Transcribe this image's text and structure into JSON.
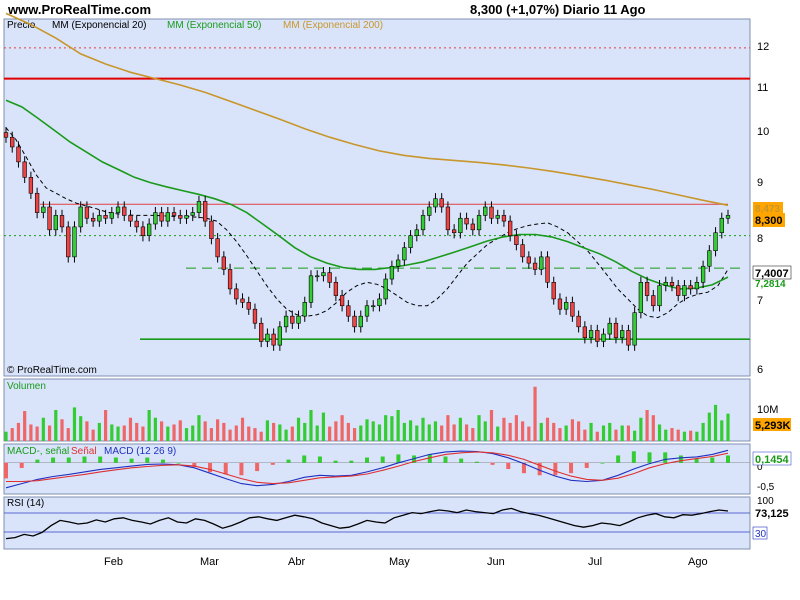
{
  "header": {
    "site": "www.ProRealTime.com",
    "quote": "8,300 (+1,07%)   Diario  11 Ago"
  },
  "price_panel": {
    "legend": [
      {
        "label": "Precio",
        "color": "#000000"
      },
      {
        "label": "MM (Exponencial 20)",
        "color": "#000000"
      },
      {
        "label": "MM (Exponencial 50)",
        "color": "#1a9a1a"
      },
      {
        "label": "MM (Exponencial 200)",
        "color": "#c8962a"
      }
    ],
    "watermark": "© ProRealTime.com",
    "y_ticks": [
      "12",
      "11",
      "10",
      "9",
      "8",
      "7",
      "6"
    ],
    "badges": [
      {
        "text": "8,300",
        "bg": "#ffa500",
        "fg": "#000000"
      },
      {
        "text": "8,473",
        "bg": "#ffa500",
        "fg": "#c8962a"
      },
      {
        "text": "7,4007",
        "bg": "#ffffff",
        "fg": "#000000"
      },
      {
        "text": "7,2814",
        "bg": "#ffffff",
        "fg": "#1a9a1a"
      }
    ]
  },
  "volume_panel": {
    "title": "Volumen",
    "title_color": "#1a9a1a",
    "y_ticks": [
      "10M"
    ],
    "badge": "5,293K"
  },
  "macd_panel": {
    "title_parts": [
      {
        "text": "MACD-, señal",
        "color": "#1a9a1a"
      },
      {
        "text": " Señal",
        "color": "#e03030"
      },
      {
        "text": " MACD (12 26 9)",
        "color": "#2030c0"
      }
    ],
    "y_ticks": [
      "0",
      "-0,5"
    ],
    "badge": "0,1454"
  },
  "rsi_panel": {
    "title": "RSI (14)",
    "y_ticks": [
      "100",
      "30"
    ],
    "badge": "73,125",
    "low_badge": "30"
  },
  "x_axis": {
    "labels": [
      "Feb",
      "Mar",
      "Abr",
      "May",
      "Jun",
      "Jul",
      "Ago"
    ]
  },
  "chart_data": {
    "type": "candlestick",
    "y_scale": "log",
    "ylim": [
      5.9,
      12.6
    ],
    "horizontal_lines": [
      {
        "price": 11.85,
        "color": "#e04040",
        "style": "dotted"
      },
      {
        "price": 11.1,
        "color": "#e00000",
        "style": "solid"
      },
      {
        "price": 8.5,
        "color": "#e04040",
        "style": "solid"
      },
      {
        "price": 7.95,
        "color": "#1a9a1a",
        "style": "dotted"
      },
      {
        "price": 7.42,
        "color": "#1a9a1a",
        "style": "dashed"
      },
      {
        "price": 6.38,
        "color": "#1a9a1a",
        "style": "solid"
      }
    ],
    "closes": [
      9.8,
      9.6,
      9.3,
      9.0,
      8.7,
      8.35,
      8.45,
      8.05,
      8.3,
      8.1,
      7.6,
      8.1,
      8.45,
      8.25,
      8.2,
      8.3,
      8.25,
      8.35,
      8.45,
      8.3,
      8.2,
      8.1,
      7.95,
      8.15,
      8.35,
      8.2,
      8.35,
      8.3,
      8.25,
      8.3,
      8.35,
      8.55,
      8.2,
      7.9,
      7.6,
      7.4,
      7.1,
      6.95,
      6.9,
      6.8,
      6.6,
      6.35,
      6.45,
      6.3,
      6.55,
      6.7,
      6.6,
      6.7,
      6.9,
      7.3,
      7.3,
      7.35,
      7.2,
      7.0,
      6.85,
      6.7,
      6.55,
      6.7,
      6.85,
      6.85,
      6.95,
      7.25,
      7.45,
      7.55,
      7.75,
      7.95,
      8.05,
      8.3,
      8.45,
      8.6,
      8.45,
      8.05,
      8.0,
      8.25,
      8.15,
      8.05,
      8.3,
      8.45,
      8.25,
      8.3,
      8.2,
      7.95,
      7.8,
      7.6,
      7.5,
      7.4,
      7.6,
      7.2,
      6.95,
      6.8,
      6.9,
      6.7,
      6.55,
      6.4,
      6.5,
      6.35,
      6.45,
      6.6,
      6.4,
      6.5,
      6.3,
      6.75,
      7.2,
      7.0,
      6.85,
      7.15,
      7.2,
      7.15,
      7.0,
      7.15,
      7.1,
      7.2,
      7.45,
      7.7,
      8.0,
      8.25,
      8.3
    ],
    "volume": [
      1.8,
      2.5,
      3.5,
      5.8,
      3.2,
      2.8,
      4.5,
      3.0,
      6.0,
      4.2,
      2.5,
      6.5,
      4.8,
      3.8,
      2.2,
      3.5,
      6.0,
      3.2,
      2.8,
      3.0,
      4.5,
      3.5,
      2.8,
      6.0,
      4.5,
      3.8,
      2.8,
      3.2,
      4.0,
      2.5,
      3.0,
      5.0,
      3.8,
      2.5,
      4.2,
      3.5,
      2.2,
      3.0,
      4.5,
      2.8,
      2.5,
      1.8,
      4.0,
      3.5,
      3.2,
      2.2,
      2.8,
      4.5,
      3.5,
      6.0,
      3.0,
      5.5,
      2.8,
      3.8,
      5.0,
      3.5,
      2.5,
      3.0,
      4.2,
      3.8,
      3.2,
      5.0,
      4.8,
      6.0,
      3.5,
      4.0,
      3.0,
      4.5,
      3.2,
      3.8,
      3.0,
      5.0,
      3.2,
      4.5,
      3.2,
      2.5,
      5.0,
      3.8,
      6.0,
      2.8,
      4.5,
      3.5,
      5.0,
      3.8,
      2.8,
      10.5,
      3.5,
      4.5,
      3.5,
      2.5,
      3.0,
      4.2,
      3.8,
      2.2,
      3.5,
      1.8,
      3.0,
      3.5,
      2.2,
      3.0,
      3.0,
      2.0,
      4.5,
      6.0,
      5.0,
      3.2,
      2.2,
      2.5,
      2.2,
      1.8,
      2.0,
      1.8,
      3.5,
      5.5,
      7.0,
      4.0,
      5.3
    ],
    "series": [
      {
        "name": "MM (Exponencial 20)",
        "color": "#000000",
        "style": "dashed",
        "from_index": 0,
        "values": [
          10.0,
          9.75,
          9.4,
          9.05,
          8.8,
          8.7,
          8.6,
          8.52,
          8.47,
          8.42,
          8.36,
          8.33,
          8.31,
          8.3,
          8.3,
          8.3,
          8.29,
          8.28,
          8.28,
          8.27,
          8.25,
          8.2,
          8.05,
          7.85,
          7.62,
          7.38,
          7.15,
          6.95,
          6.8,
          6.72,
          6.7,
          6.72,
          6.78,
          6.9,
          7.05,
          7.15,
          7.2,
          7.17,
          7.1,
          7.0,
          6.9,
          6.85,
          6.85,
          6.95,
          7.1,
          7.3,
          7.5,
          7.65,
          7.8,
          7.9,
          8.0,
          8.07,
          8.12,
          8.15,
          8.17,
          8.1,
          8.0,
          7.85,
          7.7,
          7.5,
          7.3,
          7.1,
          6.95,
          6.8,
          6.7,
          6.68,
          6.75,
          6.88,
          6.97,
          7.02,
          7.05,
          7.15,
          7.4
        ]
      },
      {
        "name": "MM (Exponencial 50)",
        "color": "#1a9a1a",
        "style": "solid",
        "from_index": 0,
        "values": [
          10.6,
          10.45,
          10.2,
          9.95,
          9.7,
          9.5,
          9.3,
          9.15,
          9.0,
          8.9,
          8.82,
          8.75,
          8.68,
          8.6,
          8.5,
          8.35,
          8.15,
          7.95,
          7.75,
          7.6,
          7.5,
          7.43,
          7.4,
          7.4,
          7.43,
          7.47,
          7.52,
          7.6,
          7.68,
          7.77,
          7.86,
          7.93,
          7.97,
          7.97,
          7.93,
          7.85,
          7.75,
          7.65,
          7.52,
          7.37,
          7.25,
          7.16,
          7.1,
          7.11,
          7.16,
          7.28
        ]
      },
      {
        "name": "MM (Exponencial 200)",
        "color": "#c8962a",
        "style": "solid",
        "from_index": 0,
        "values": [
          12.75,
          12.45,
          12.1,
          11.7,
          11.45,
          11.25,
          11.1,
          10.95,
          10.78,
          10.58,
          10.38,
          10.18,
          9.98,
          9.8,
          9.65,
          9.52,
          9.43,
          9.37,
          9.33,
          9.29,
          9.24,
          9.18,
          9.11,
          9.03,
          8.95,
          8.86,
          8.77,
          8.67,
          8.57,
          8.48
        ]
      }
    ],
    "macd": [
      -0.6,
      -0.5,
      -0.4,
      -0.33,
      -0.28,
      -0.22,
      -0.16,
      -0.12,
      -0.08,
      -0.04,
      -0.03,
      -0.05,
      -0.12,
      -0.25,
      -0.38,
      -0.5,
      -0.55,
      -0.52,
      -0.45,
      -0.35,
      -0.3,
      -0.32,
      -0.3,
      -0.22,
      -0.12,
      0.0,
      0.1,
      0.2,
      0.26,
      0.28,
      0.27,
      0.22,
      0.12,
      -0.02,
      -0.18,
      -0.32,
      -0.42,
      -0.45,
      -0.42,
      -0.3,
      -0.15,
      -0.02,
      0.08,
      0.12,
      0.14,
      0.2,
      0.3
    ],
    "macd_signal": [
      -0.45,
      -0.45,
      -0.43,
      -0.38,
      -0.33,
      -0.28,
      -0.22,
      -0.17,
      -0.12,
      -0.09,
      -0.06,
      -0.05,
      -0.08,
      -0.16,
      -0.27,
      -0.38,
      -0.47,
      -0.5,
      -0.48,
      -0.42,
      -0.36,
      -0.34,
      -0.32,
      -0.27,
      -0.18,
      -0.08,
      0.03,
      0.12,
      0.2,
      0.24,
      0.26,
      0.24,
      0.18,
      0.08,
      -0.06,
      -0.2,
      -0.32,
      -0.4,
      -0.42,
      -0.37,
      -0.26,
      -0.12,
      -0.02,
      0.05,
      0.1,
      0.15,
      0.23
    ],
    "rsi": [
      20,
      22,
      28,
      25,
      32,
      45,
      55,
      52,
      48,
      50,
      56,
      52,
      58,
      60,
      55,
      52,
      48,
      55,
      60,
      52,
      50,
      58,
      55,
      48,
      40,
      45,
      52,
      60,
      62,
      58,
      55,
      60,
      65,
      62,
      58,
      50,
      45,
      40,
      42,
      48,
      55,
      52,
      50,
      60,
      65,
      70,
      68,
      72,
      75,
      73,
      70,
      75,
      72,
      70,
      68,
      75,
      78,
      72,
      68,
      65,
      60,
      55,
      50,
      45,
      42,
      45,
      50,
      48,
      45,
      52,
      60,
      65,
      68,
      62,
      60,
      66,
      65,
      68,
      72,
      75,
      73
    ]
  }
}
